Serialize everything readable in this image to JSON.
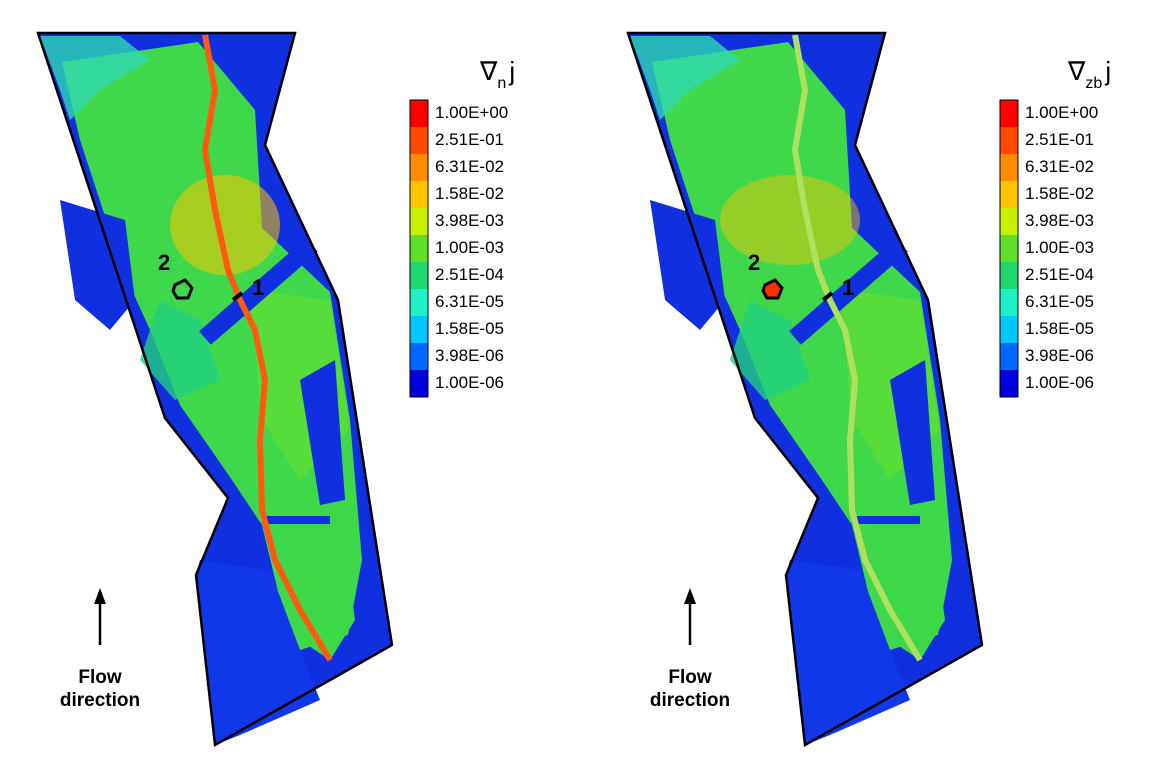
{
  "panels": [
    {
      "legend_title": {
        "symbol": "∇",
        "subscript": "n",
        "variable": "j"
      },
      "legend": {
        "labels": [
          "1.00E+00",
          "2.51E-01",
          "6.31E-02",
          "1.58E-02",
          "3.98E-03",
          "1.00E-03",
          "2.51E-04",
          "6.31E-05",
          "1.58E-05",
          "3.98E-06",
          "1.00E-06"
        ],
        "colors": [
          "#ff0000",
          "#ff4a00",
          "#ff8c00",
          "#ffc400",
          "#c8f000",
          "#5ee02a",
          "#20d870",
          "#1ef0c8",
          "#00c8ff",
          "#0068ff",
          "#0000dd"
        ]
      },
      "site_labels": [
        "1",
        "2"
      ],
      "flow_label": [
        "Flow",
        "direction"
      ]
    },
    {
      "legend_title": {
        "symbol": "∇",
        "subscript": "zb",
        "variable": "j"
      },
      "legend": {
        "labels": [
          "1.00E+00",
          "2.51E-01",
          "6.31E-02",
          "1.58E-02",
          "3.98E-03",
          "1.00E-03",
          "2.51E-04",
          "6.31E-05",
          "1.58E-05",
          "3.98E-06",
          "1.00E-06"
        ],
        "colors": [
          "#ff0000",
          "#ff4a00",
          "#ff8c00",
          "#ffc400",
          "#c8f000",
          "#5ee02a",
          "#20d870",
          "#1ef0c8",
          "#00c8ff",
          "#0068ff",
          "#0000dd"
        ]
      },
      "site_labels": [
        "1",
        "2"
      ],
      "flow_label": [
        "Flow",
        "direction"
      ]
    }
  ]
}
